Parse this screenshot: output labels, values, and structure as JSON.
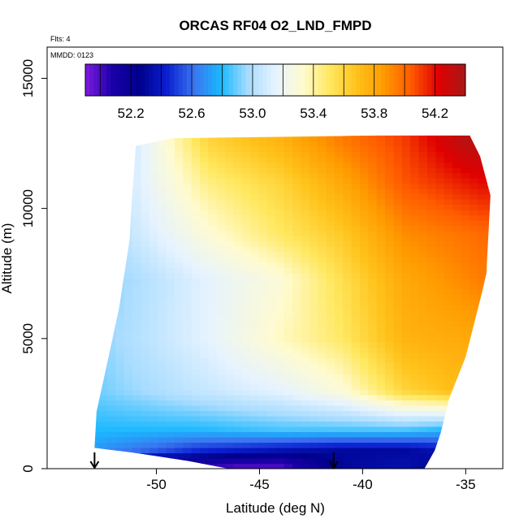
{
  "chart_data": {
    "type": "heatmap",
    "title": "ORCAS RF04 O2_LND_FMPD",
    "subtitle_lines": [
      "Flts: 4",
      "MMDD: 0123"
    ],
    "xlabel": "Latitude (deg N)",
    "ylabel": "Altitude (m)",
    "xlim": [
      -55.3,
      -33.2
    ],
    "ylim": [
      0,
      16200
    ],
    "x_ticks": [
      -50,
      -45,
      -40,
      -35
    ],
    "x_tick_labels": [
      "-50",
      "-45",
      "-40",
      "-35"
    ],
    "y_ticks": [
      0,
      5000,
      10000,
      15000
    ],
    "y_tick_labels": [
      "0",
      "5000",
      "10000",
      "15000"
    ],
    "colorbar": {
      "range": [
        51.9,
        54.4
      ],
      "ticks": [
        52.2,
        52.6,
        53.0,
        53.4,
        53.8,
        54.2
      ],
      "tick_labels": [
        "52.2",
        "52.6",
        "53.0",
        "53.4",
        "53.8",
        "54.2"
      ],
      "stops": [
        "#7e1be0",
        "#1a00a8",
        "#00008b",
        "#0a1fd0",
        "#3a75f0",
        "#1ab8ff",
        "#a8dcff",
        "#e6f3ff",
        "#fffbd0",
        "#ffe860",
        "#ffc21a",
        "#ff9a00",
        "#ff5a00",
        "#e00000",
        "#a81818"
      ]
    },
    "domain": {
      "bottom_edge": [
        [
          -53.0,
          800
        ],
        [
          -51.0,
          600
        ],
        [
          -48.5,
          300
        ],
        [
          -46.5,
          0
        ],
        [
          -37.0,
          0
        ],
        [
          -36.5,
          700
        ],
        [
          -36.2,
          1400
        ],
        [
          -35.8,
          2700
        ],
        [
          -35.0,
          4300
        ],
        [
          -34.2,
          6800
        ],
        [
          -34.0,
          7500
        ]
      ],
      "top_edge": [
        [
          -53.0,
          800
        ],
        [
          -52.9,
          2200
        ],
        [
          -52.4,
          4000
        ],
        [
          -51.8,
          6200
        ],
        [
          -51.3,
          8800
        ],
        [
          -51.2,
          10200
        ],
        [
          -51.0,
          12400
        ],
        [
          -49.2,
          12700
        ],
        [
          -39.2,
          12800
        ],
        [
          -34.8,
          12800
        ],
        [
          -34.3,
          12000
        ],
        [
          -33.8,
          10500
        ],
        [
          -34.0,
          7500
        ]
      ]
    },
    "sample_rows": [
      {
        "alt": 12600,
        "lat": [
          -51.0,
          -47.5,
          -44.0,
          -41.0,
          -38.0,
          -35.0
        ],
        "value": [
          53.1,
          53.6,
          53.75,
          53.95,
          54.1,
          54.35
        ]
      },
      {
        "alt": 11000,
        "lat": [
          -51.2,
          -47.5,
          -44.0,
          -41.0,
          -38.0,
          -34.3
        ],
        "value": [
          53.1,
          53.45,
          53.6,
          53.8,
          54.05,
          54.2
        ]
      },
      {
        "alt": 9000,
        "lat": [
          -51.3,
          -47.5,
          -44.0,
          -41.0,
          -38.0,
          -34.0
        ],
        "value": [
          53.05,
          53.3,
          53.5,
          53.65,
          53.9,
          54.0
        ]
      },
      {
        "alt": 7300,
        "lat": [
          -51.8,
          -47.5,
          -44.0,
          -41.0,
          -38.0,
          -34.2
        ],
        "value": [
          52.95,
          53.15,
          53.3,
          53.55,
          53.8,
          53.95
        ]
      },
      {
        "alt": 5000,
        "lat": [
          -52.4,
          -47.5,
          -44.0,
          -41.0,
          -38.0,
          -34.8
        ],
        "value": [
          52.95,
          53.15,
          53.35,
          53.5,
          53.75,
          53.8
        ]
      },
      {
        "alt": 3000,
        "lat": [
          -52.9,
          -48.0,
          -44.0,
          -41.0,
          -38.0,
          -35.8
        ],
        "value": [
          52.9,
          53.05,
          53.15,
          53.3,
          53.6,
          53.7
        ]
      },
      {
        "alt": 1500,
        "lat": [
          -53.0,
          -48.0,
          -44.0,
          -41.0,
          -38.0,
          -36.2
        ],
        "value": [
          52.8,
          52.8,
          52.85,
          52.85,
          52.85,
          52.8
        ]
      },
      {
        "alt": 700,
        "lat": [
          -53.0,
          -48.0,
          -44.0,
          -41.0,
          -38.0,
          -36.5
        ],
        "value": [
          52.7,
          52.45,
          52.35,
          52.3,
          52.3,
          52.35
        ]
      },
      {
        "alt": 200,
        "lat": [
          -48.5,
          -46.0,
          -44.0,
          -41.0,
          -38.0,
          -36.9
        ],
        "value": [
          52.1,
          52.0,
          52.0,
          52.3,
          52.35,
          52.3
        ]
      }
    ],
    "profile_markers": [
      -53.0,
      -41.4
    ],
    "grid": false,
    "legend": "top"
  }
}
